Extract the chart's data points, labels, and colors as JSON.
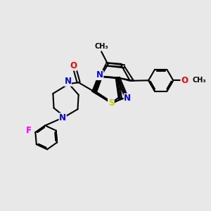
{
  "bg_color": "#e8e8e8",
  "bond_color": "#000000",
  "bond_width": 1.5,
  "atom_colors": {
    "N": "#0000ff",
    "O": "#ff0000",
    "S": "#cccc00",
    "F": "#ff00ff",
    "C": "#000000"
  },
  "font_size_atom": 8.5
}
